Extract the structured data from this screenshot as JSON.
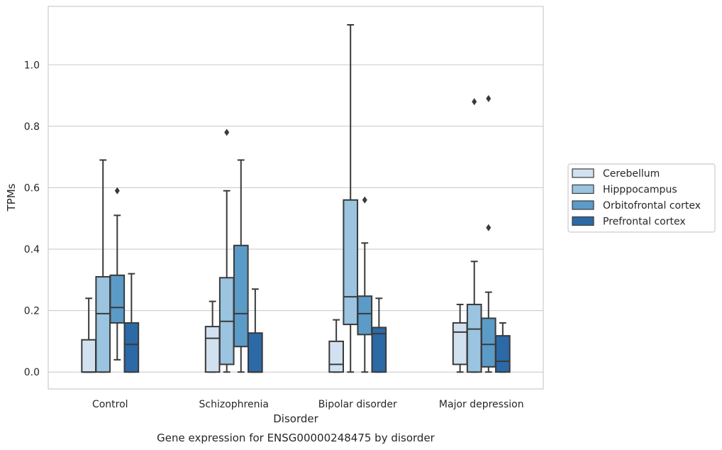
{
  "chart_data": {
    "type": "box",
    "caption": "Gene expression for ENSG00000248475 by disorder",
    "xlabel": "Disorder",
    "ylabel": "TPMs",
    "ylim": [
      -0.055,
      1.19
    ],
    "yticks": [
      0.0,
      0.2,
      0.4,
      0.6,
      0.8,
      1.0
    ],
    "ytick_labels": [
      "0.0",
      "0.2",
      "0.4",
      "0.6",
      "0.8",
      "1.0"
    ],
    "grid": "horizontal",
    "legend_position": "right",
    "categories": [
      "Control",
      "Schizophrenia",
      "Bipolar disorder",
      "Major depression"
    ],
    "series": [
      {
        "name": "Cerebellum",
        "color": "#d1e1ef",
        "boxes": [
          {
            "whisker_low": 0.0,
            "q1": 0.0,
            "median": 0.0,
            "q3": 0.105,
            "whisker_high": 0.24,
            "outliers": []
          },
          {
            "whisker_low": 0.0,
            "q1": 0.0,
            "median": 0.11,
            "q3": 0.148,
            "whisker_high": 0.23,
            "outliers": []
          },
          {
            "whisker_low": 0.0,
            "q1": 0.0,
            "median": 0.025,
            "q3": 0.1,
            "whisker_high": 0.17,
            "outliers": []
          },
          {
            "whisker_low": 0.0,
            "q1": 0.025,
            "median": 0.13,
            "q3": 0.16,
            "whisker_high": 0.22,
            "outliers": []
          }
        ]
      },
      {
        "name": "Hipppocampus",
        "color": "#9ac4df",
        "boxes": [
          {
            "whisker_low": 0.0,
            "q1": 0.0,
            "median": 0.19,
            "q3": 0.31,
            "whisker_high": 0.69,
            "outliers": []
          },
          {
            "whisker_low": 0.0,
            "q1": 0.025,
            "median": 0.165,
            "q3": 0.307,
            "whisker_high": 0.59,
            "outliers": [
              0.78
            ]
          },
          {
            "whisker_low": 0.0,
            "q1": 0.155,
            "median": 0.245,
            "q3": 0.56,
            "whisker_high": 1.13,
            "outliers": []
          },
          {
            "whisker_low": 0.0,
            "q1": 0.0,
            "median": 0.14,
            "q3": 0.22,
            "whisker_high": 0.36,
            "outliers": [
              0.88
            ]
          }
        ]
      },
      {
        "name": "Orbitofrontal cortex",
        "color": "#5b9bc8",
        "boxes": [
          {
            "whisker_low": 0.04,
            "q1": 0.16,
            "median": 0.21,
            "q3": 0.315,
            "whisker_high": 0.51,
            "outliers": [
              0.59
            ]
          },
          {
            "whisker_low": 0.0,
            "q1": 0.083,
            "median": 0.19,
            "q3": 0.412,
            "whisker_high": 0.69,
            "outliers": []
          },
          {
            "whisker_low": 0.0,
            "q1": 0.122,
            "median": 0.19,
            "q3": 0.247,
            "whisker_high": 0.42,
            "outliers": [
              0.56
            ]
          },
          {
            "whisker_low": 0.0,
            "q1": 0.017,
            "median": 0.09,
            "q3": 0.175,
            "whisker_high": 0.26,
            "outliers": [
              0.47,
              0.89
            ]
          }
        ]
      },
      {
        "name": "Prefrontal cortex",
        "color": "#2b69a7",
        "boxes": [
          {
            "whisker_low": 0.0,
            "q1": 0.0,
            "median": 0.09,
            "q3": 0.16,
            "whisker_high": 0.32,
            "outliers": []
          },
          {
            "whisker_low": 0.0,
            "q1": 0.0,
            "median": 0.0,
            "q3": 0.127,
            "whisker_high": 0.27,
            "outliers": []
          },
          {
            "whisker_low": 0.0,
            "q1": 0.0,
            "median": 0.125,
            "q3": 0.145,
            "whisker_high": 0.24,
            "outliers": []
          },
          {
            "whisker_low": 0.0,
            "q1": 0.0,
            "median": 0.035,
            "q3": 0.118,
            "whisker_high": 0.16,
            "outliers": []
          }
        ]
      }
    ]
  }
}
